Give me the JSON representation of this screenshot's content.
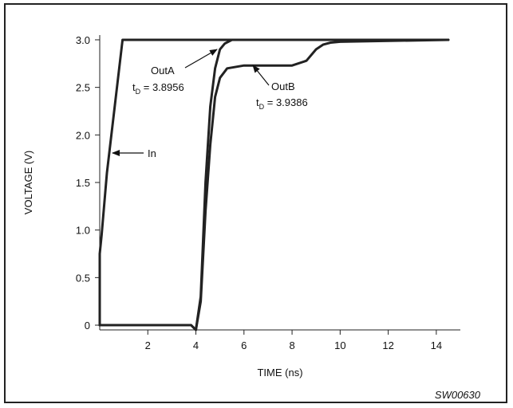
{
  "chart_data": {
    "type": "line",
    "title": "",
    "xlabel": "TIME (ns)",
    "ylabel": "VOLTAGE (V)",
    "xlim": [
      0,
      15
    ],
    "ylim": [
      -0.05,
      3.05
    ],
    "xticks": [
      2,
      4,
      6,
      8,
      10,
      12,
      14
    ],
    "xtick_labels": [
      "2",
      "4",
      "6",
      "8",
      "10",
      "12",
      "14"
    ],
    "yticks": [
      0,
      0.5,
      1.0,
      1.5,
      2.0,
      2.5,
      3.0
    ],
    "ytick_labels": [
      "0",
      "0.5",
      "1.0",
      "1.5",
      "2.0",
      "2.5",
      "3.0"
    ],
    "grid": false,
    "line_color": "#222222",
    "series": [
      {
        "name": "In",
        "x": [
          0.0,
          0.0,
          0.08,
          0.3,
          0.95,
          1.0,
          14.5
        ],
        "y": [
          0.0,
          0.75,
          0.95,
          1.6,
          3.0,
          3.0,
          3.0
        ]
      },
      {
        "name": "OutA",
        "x": [
          0.0,
          3.7,
          3.8,
          4.0,
          4.2,
          4.4,
          4.6,
          4.8,
          5.0,
          5.2,
          5.5,
          6.0,
          8.0,
          10.0,
          14.5
        ],
        "y": [
          0.0,
          0.0,
          0.0,
          -0.05,
          0.3,
          1.5,
          2.3,
          2.7,
          2.9,
          2.96,
          3.0,
          3.0,
          3.0,
          3.0,
          3.0
        ]
      },
      {
        "name": "OutB",
        "x": [
          0.0,
          3.7,
          3.8,
          4.0,
          4.2,
          4.4,
          4.6,
          4.8,
          5.0,
          5.3,
          6.0,
          7.0,
          8.0,
          8.6,
          9.0,
          9.3,
          9.6,
          10.0,
          14.5
        ],
        "y": [
          0.0,
          0.0,
          0.0,
          -0.05,
          0.25,
          1.2,
          1.9,
          2.4,
          2.6,
          2.7,
          2.73,
          2.73,
          2.73,
          2.78,
          2.9,
          2.95,
          2.97,
          2.98,
          3.0
        ]
      }
    ],
    "annotations": [
      {
        "text": "In",
        "series": "In"
      },
      {
        "text": "OutA",
        "series": "OutA"
      },
      {
        "text": "t",
        "sub": "D",
        "rest": " = 3.8956",
        "series": "OutA"
      },
      {
        "text": "OutB",
        "series": "OutB"
      },
      {
        "text": "t",
        "sub": "D",
        "rest": " = 3.9386",
        "series": "OutB"
      }
    ],
    "figure_id": "SW00630"
  }
}
